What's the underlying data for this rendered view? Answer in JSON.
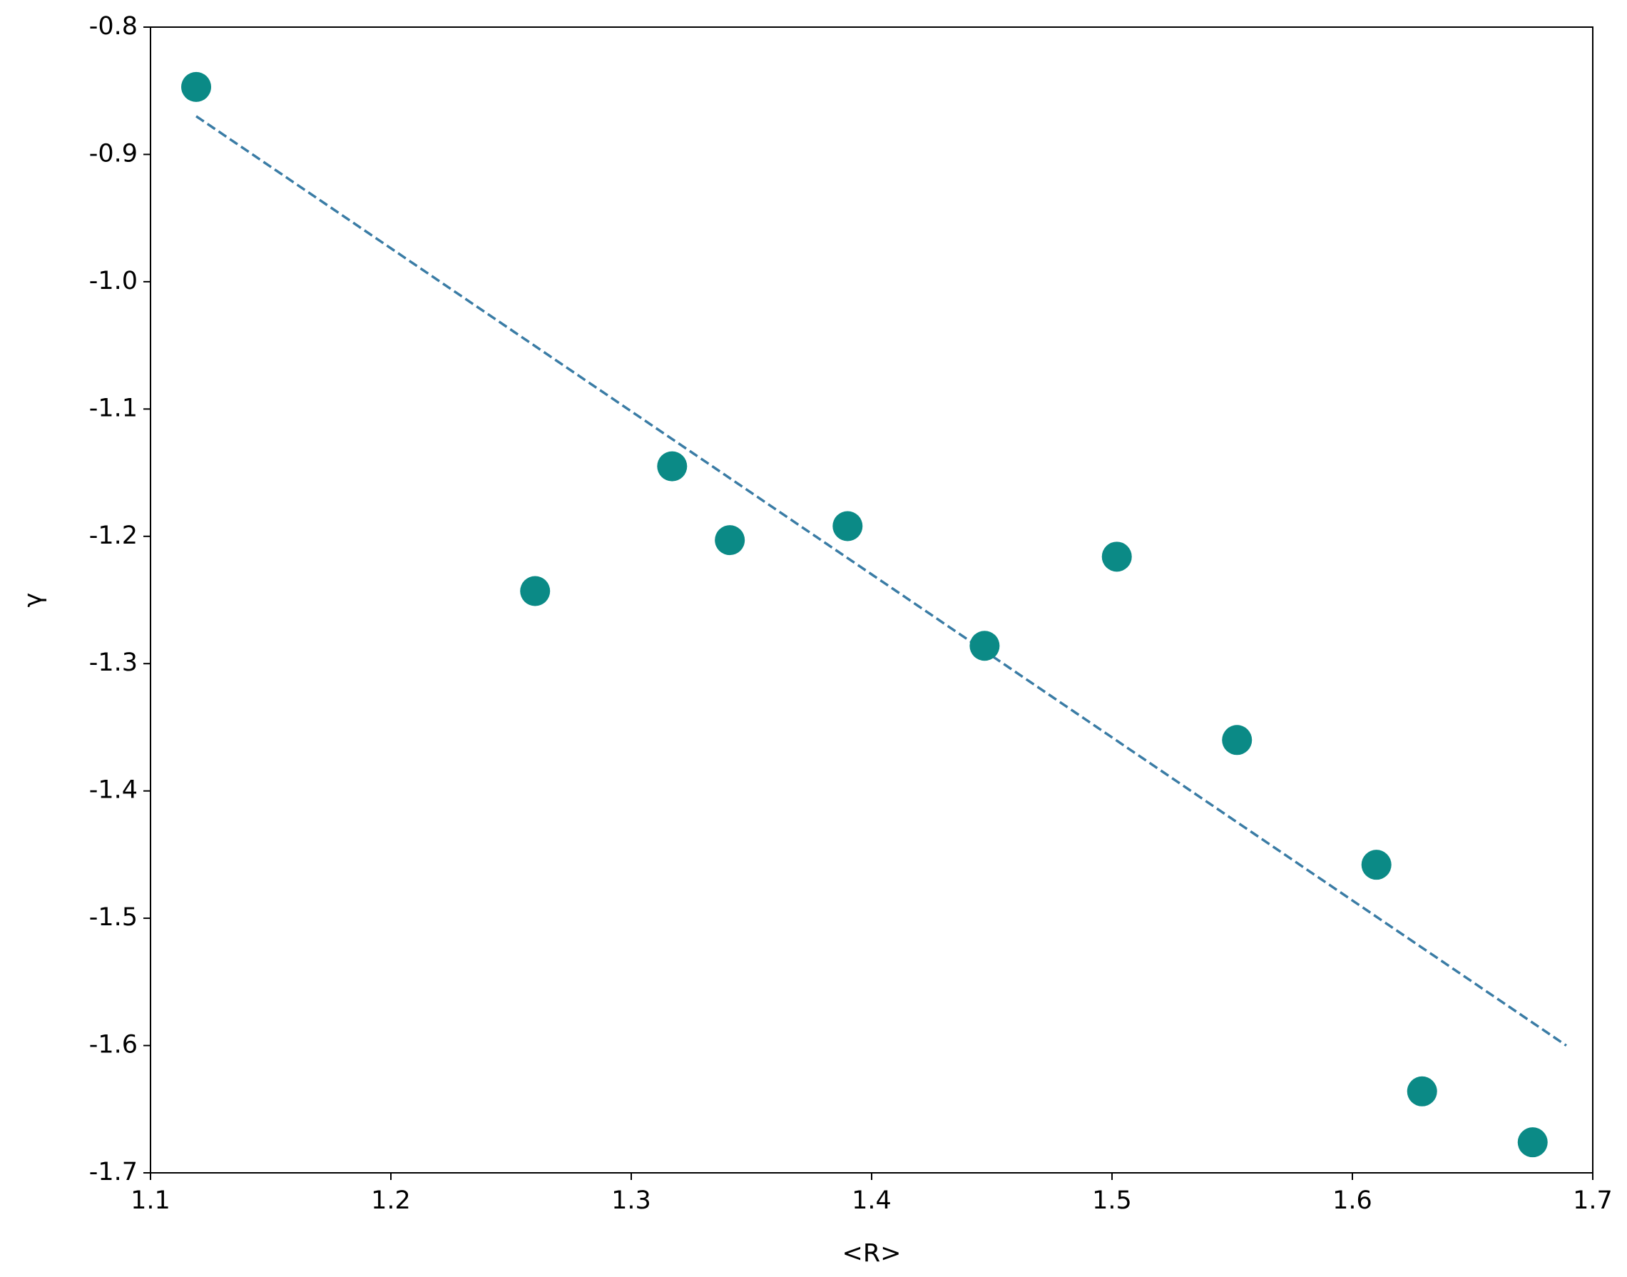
{
  "chart_data": {
    "type": "scatter",
    "xlabel": "<R>",
    "ylabel": "γ",
    "series": [
      {
        "color": "#0b8a86",
        "x": [
          1.119,
          1.26,
          1.317,
          1.341,
          1.39,
          1.447,
          1.502,
          1.552,
          1.61,
          1.629,
          1.675
        ],
        "values": [
          -0.847,
          -1.243,
          -1.145,
          -1.203,
          -1.192,
          -1.286,
          -1.216,
          -1.36,
          -1.458,
          -1.636,
          -1.676
        ]
      }
    ],
    "fit_line": {
      "color": "#3a7ca5",
      "style": "dashed",
      "x": [
        1.119,
        1.689
      ],
      "values": [
        -0.87,
        -1.6
      ]
    },
    "xlim": [
      1.1,
      1.7
    ],
    "xticks": [
      1.1,
      1.2,
      1.3,
      1.4,
      1.5,
      1.6,
      1.7
    ],
    "ylim": [
      -1.7,
      -0.8
    ],
    "yticks": [
      -1.7,
      -1.6,
      -1.5,
      -1.4,
      -1.3,
      -1.2,
      -1.1,
      {
        "value": -1,
        "label": "-1.0"
      },
      -0.9,
      -0.8
    ],
    "grid": false
  }
}
